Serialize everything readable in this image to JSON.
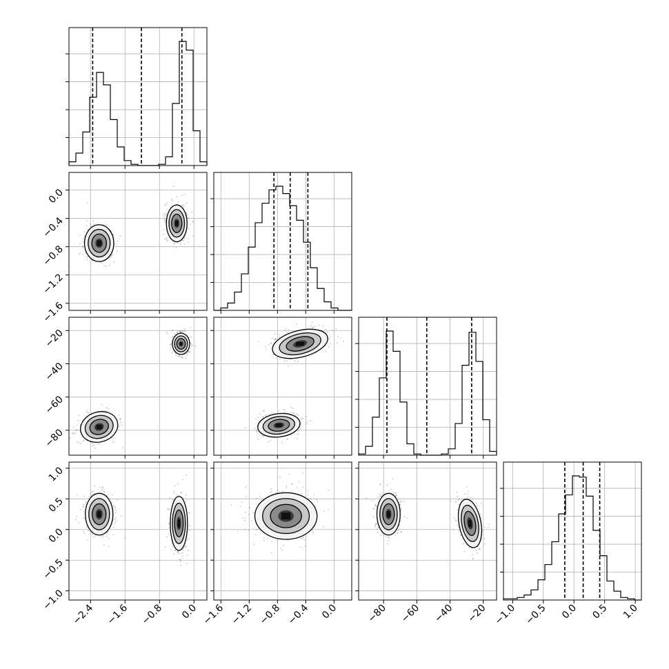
{
  "chart_data": {
    "type": "corner",
    "grid": true,
    "variables": [
      {
        "range": [
          -2.9,
          0.3
        ],
        "ticks": [
          -2.4,
          -1.6,
          -0.8,
          0.0
        ],
        "tick_labels": [
          "−2.4",
          "−1.6",
          "−0.8",
          "0.0"
        ],
        "quantiles": [
          -2.35,
          -1.22,
          -0.28
        ]
      },
      {
        "range": [
          -1.7,
          0.25
        ],
        "ticks": [
          -1.6,
          -1.2,
          -0.8,
          -0.4,
          0.0
        ],
        "tick_labels": [
          "−1.6",
          "−1.2",
          "−0.8",
          "−0.4",
          "0.0"
        ],
        "quantiles": [
          -0.85,
          -0.62,
          -0.37
        ]
      },
      {
        "range": [
          -95,
          -12
        ],
        "ticks": [
          -80,
          -60,
          -40,
          -20
        ],
        "tick_labels": [
          "−80",
          "−60",
          "−40",
          "−20"
        ],
        "quantiles": [
          -78,
          -54,
          -27
        ]
      },
      {
        "range": [
          -1.15,
          1.1
        ],
        "ticks": [
          -1.0,
          -0.5,
          0.0,
          0.5,
          1.0
        ],
        "tick_labels": [
          "−1.0",
          "−0.5",
          "0.0",
          "0.5",
          "1.0"
        ],
        "quantiles": [
          -0.15,
          0.15,
          0.42
        ]
      }
    ],
    "histograms": [
      {
        "var": 0,
        "bins": 20,
        "counts": [
          3,
          10,
          27,
          55,
          75,
          65,
          37,
          15,
          4,
          1,
          0,
          0,
          0,
          1,
          7,
          50,
          100,
          93,
          28,
          3
        ]
      },
      {
        "var": 1,
        "bins": 20,
        "counts": [
          0,
          2,
          6,
          15,
          30,
          52,
          72,
          88,
          99,
          102,
          96,
          86,
          74,
          56,
          35,
          18,
          7,
          2,
          0,
          0
        ]
      },
      {
        "var": 2,
        "bins": 20,
        "counts": [
          1,
          7,
          30,
          61,
          98,
          82,
          42,
          9,
          1,
          0,
          0,
          0,
          1,
          5,
          25,
          71,
          97,
          74,
          28,
          3
        ]
      },
      {
        "var": 3,
        "bins": 20,
        "counts": [
          1,
          1,
          2,
          4,
          8,
          16,
          28,
          46,
          68,
          83,
          98,
          97,
          82,
          55,
          35,
          15,
          7,
          2,
          1,
          0
        ]
      }
    ],
    "pairs": [
      {
        "x": 0,
        "y": 1,
        "modes": [
          {
            "center": [
              -2.2,
              -0.75
            ],
            "sigma": [
              0.17,
              0.13
            ],
            "rho": 0
          },
          {
            "center": [
              -0.4,
              -0.47
            ],
            "sigma": [
              0.12,
              0.13
            ],
            "rho": 0
          }
        ]
      },
      {
        "x": 0,
        "y": 2,
        "modes": [
          {
            "center": [
              -2.2,
              -78
            ],
            "sigma": [
              0.22,
              4.5
            ],
            "rho": 0.5
          },
          {
            "center": [
              -0.3,
              -28
            ],
            "sigma": [
              0.1,
              3.2
            ],
            "rho": 0
          }
        ]
      },
      {
        "x": 1,
        "y": 2,
        "modes": [
          {
            "center": [
              -0.78,
              -77
            ],
            "sigma": [
              0.15,
              3.5
            ],
            "rho": 0.2
          },
          {
            "center": [
              -0.48,
              -28
            ],
            "sigma": [
              0.2,
              4.0
            ],
            "rho": 0.4
          }
        ]
      },
      {
        "x": 0,
        "y": 3,
        "modes": [
          {
            "center": [
              -2.2,
              0.25
            ],
            "sigma": [
              0.16,
              0.17
            ],
            "rho": 0
          },
          {
            "center": [
              -0.35,
              0.1
            ],
            "sigma": [
              0.1,
              0.22
            ],
            "rho": 0
          }
        ]
      },
      {
        "x": 1,
        "y": 3,
        "modes": [
          {
            "center": [
              -0.68,
              0.22
            ],
            "sigma": [
              0.22,
              0.19
            ],
            "rho": 0
          }
        ]
      },
      {
        "x": 2,
        "y": 3,
        "modes": [
          {
            "center": [
              -77,
              0.25
            ],
            "sigma": [
              3.5,
              0.17
            ],
            "rho": 0
          },
          {
            "center": [
              -28,
              0.1
            ],
            "sigma": [
              3.3,
              0.2
            ],
            "rho": 0.3
          }
        ]
      }
    ]
  }
}
